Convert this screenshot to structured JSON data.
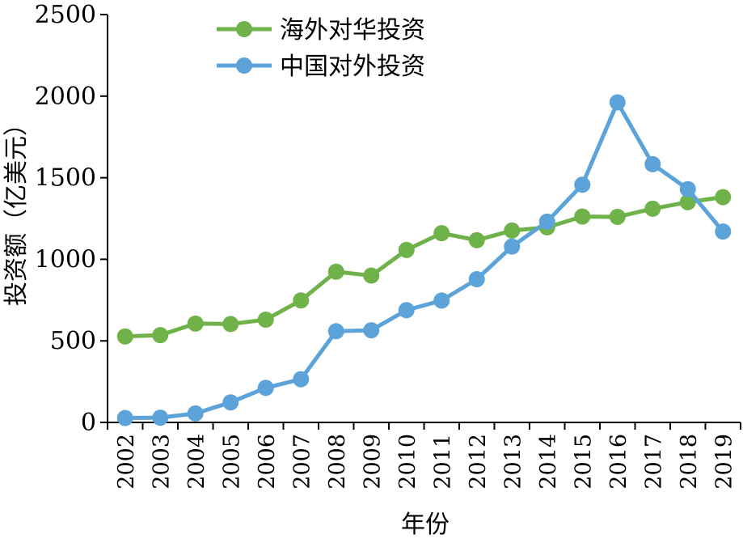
{
  "chart_data": {
    "type": "line",
    "title": "",
    "xlabel": "年份",
    "ylabel": "投资额（亿美元）",
    "categories": [
      "2002",
      "2003",
      "2004",
      "2005",
      "2006",
      "2007",
      "2008",
      "2009",
      "2010",
      "2011",
      "2012",
      "2013",
      "2014",
      "2015",
      "2016",
      "2017",
      "2018",
      "2019"
    ],
    "ylim": [
      0,
      2500
    ],
    "yticks": [
      0,
      500,
      1000,
      1500,
      2000,
      2500
    ],
    "grid": false,
    "legend_position": "top-left",
    "series": [
      {
        "name": "海外对华投资",
        "color": "#70b24a",
        "values": [
          527,
          535,
          606,
          603,
          630,
          748,
          924,
          900,
          1057,
          1160,
          1117,
          1176,
          1196,
          1262,
          1260,
          1310,
          1350,
          1381
        ]
      },
      {
        "name": "中国对外投资",
        "color": "#5ba3d9",
        "values": [
          27,
          29,
          55,
          123,
          212,
          265,
          559,
          565,
          688,
          747,
          878,
          1078,
          1231,
          1457,
          1962,
          1583,
          1430,
          1170
        ]
      }
    ]
  }
}
